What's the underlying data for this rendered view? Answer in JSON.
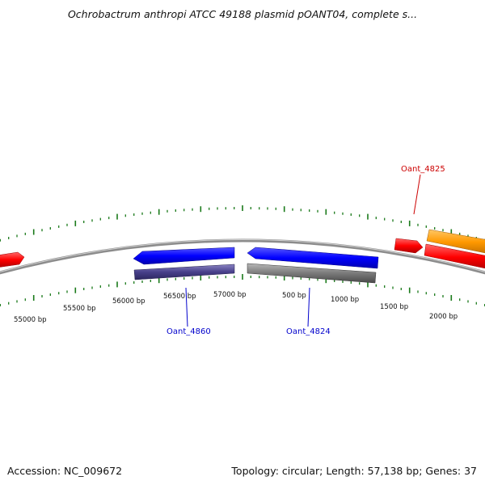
{
  "title": "Ochrobactrum anthropi ATCC 49188 plasmid pOANT04, complete s...",
  "footer": {
    "accession": "Accession: NC_009672",
    "summary": "Topology: circular; Length: 57,138 bp; Genes: 37"
  },
  "ticks": [
    {
      "label": "55000 bp"
    },
    {
      "label": "55500 bp"
    },
    {
      "label": "56000 bp"
    },
    {
      "label": "56500 bp"
    },
    {
      "label": "57000 bp"
    },
    {
      "label": "500 bp"
    },
    {
      "label": "1000 bp"
    },
    {
      "label": "1500 bp"
    },
    {
      "label": "2000 bp"
    }
  ],
  "genes": [
    {
      "label": "Oant_4825",
      "color": "#cc0000"
    },
    {
      "label": "Oant_4860",
      "color": "#0000cc"
    },
    {
      "label": "Oant_4824",
      "color": "#0000cc"
    }
  ],
  "colors": {
    "backbone": "#888888",
    "tick": "#1a7a1a",
    "forward_cds": "#ff0000",
    "reverse_cds": "#0000ff",
    "forward_gene": "#ff9900",
    "reverse_gene": "#48408a",
    "other_gene": "#7a7a7a"
  }
}
